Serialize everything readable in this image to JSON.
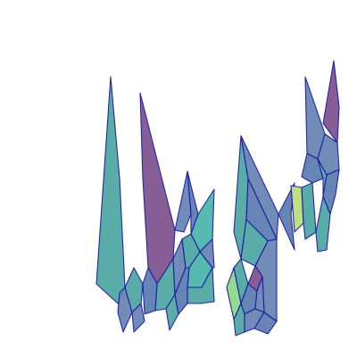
{
  "diagram": {
    "type": "voronoi-cells",
    "edge_color": "#1a1aa6",
    "background": "#ffffff",
    "palette": {
      "teal": "#52a8a5",
      "blue_gray": "#6a86b3",
      "purple": "#80558f",
      "steel": "#5f7fb0",
      "cyan": "#4fb7ac",
      "light_green": "#8fda8a",
      "yellow_green": "#b9e07a"
    }
  }
}
